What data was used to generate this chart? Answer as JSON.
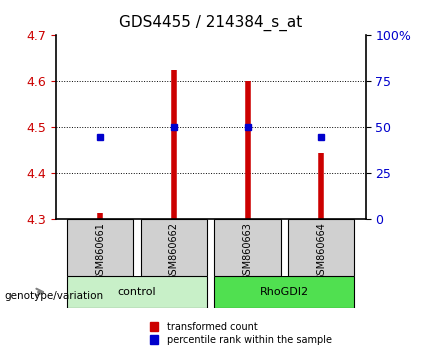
{
  "title": "GDS4455 / 214384_s_at",
  "samples": [
    "GSM860661",
    "GSM860662",
    "GSM860663",
    "GSM860664"
  ],
  "red_values": [
    4.315,
    4.625,
    4.6,
    4.445
  ],
  "blue_values": [
    4.48,
    4.5,
    4.5,
    4.48
  ],
  "ylim": [
    4.3,
    4.7
  ],
  "yticks_red": [
    4.3,
    4.4,
    4.5,
    4.6,
    4.7
  ],
  "yticks_blue": [
    0,
    25,
    50,
    75,
    100
  ],
  "groups": [
    {
      "label": "control",
      "indices": [
        0,
        1
      ],
      "color": "#c8f0c8"
    },
    {
      "label": "RhoGDI2",
      "indices": [
        2,
        3
      ],
      "color": "#50e050"
    }
  ],
  "red_color": "#cc0000",
  "blue_color": "#0000cc",
  "bar_base": 4.3,
  "grid_color": "#000000",
  "bg_color": "#ffffff",
  "sample_area_color": "#d0d0d0",
  "legend_red": "transformed count",
  "legend_blue": "percentile rank within the sample",
  "xlabel_left": "",
  "genotype_label": "genotype/variation"
}
